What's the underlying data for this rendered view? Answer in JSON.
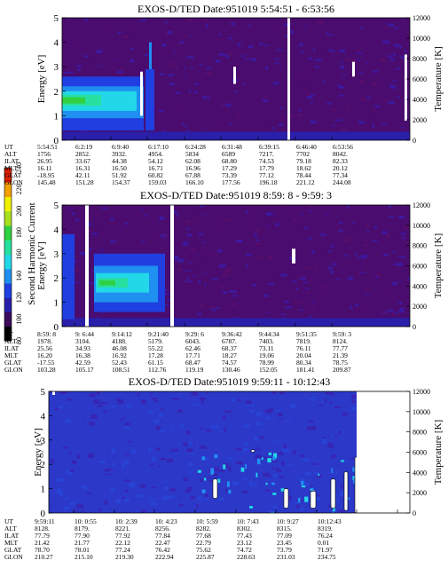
{
  "colorbar": {
    "label": "Second Harmonic Current",
    "ticks": [
      "80",
      "100",
      "120",
      "140",
      "160",
      "180",
      "200",
      "220",
      "240"
    ],
    "colors": [
      "#000000",
      "#3c0a5a",
      "#2a1fa8",
      "#1f3fe0",
      "#1f8ff0",
      "#22d8e8",
      "#27e0a0",
      "#30d040",
      "#a8e020",
      "#f0f000",
      "#f0a000",
      "#e02000"
    ]
  },
  "chart_data": [
    {
      "type": "heatmap",
      "title": "EXOS-D/TED   Date:951019  5:54:51 - 6:53:56",
      "ylabel": "Energy [eV]",
      "y2label": "Temperature [K]",
      "ylim": [
        0,
        5
      ],
      "y_ticks": [
        "0",
        "1",
        "2",
        "3",
        "4",
        "5"
      ],
      "y2lim": [
        0,
        12000
      ],
      "y2_ticks": [
        "0",
        "2000",
        "4000",
        "6000",
        "8000",
        "10000",
        "12000"
      ],
      "row_labels": [
        "UT",
        "ALT",
        "ILAT",
        "MLT",
        "GLAT",
        "GLON"
      ],
      "columns": [
        [
          "5:54:51",
          "1756",
          "26.95",
          "16.11",
          "-18.95",
          "145.48"
        ],
        [
          "6:2:19",
          "2852.",
          "33.67",
          "16.31",
          "42.11",
          "151.28"
        ],
        [
          "6:9:40",
          "3932.",
          "44.38",
          "16.50",
          "51.92",
          "154.37"
        ],
        [
          "6:17:10",
          "4954.",
          "54.12",
          "16.71",
          "60.82",
          "159.03"
        ],
        [
          "6:24:28",
          "5834",
          "62.08",
          "16.96",
          "67.88",
          "166.10"
        ],
        [
          "6:31:48",
          "6589",
          "68.80",
          "17.29",
          "73.39",
          "177.56"
        ],
        [
          "6:39:15",
          "7217.",
          "74.53",
          "17.79",
          "77.12",
          "196.18"
        ],
        [
          "6:46:40",
          "7702",
          "79.18",
          "18.62",
          "78.44",
          "221.12"
        ],
        [
          "6:53:56",
          "8042.",
          "82.33",
          "20.12",
          "77.34",
          "244.08"
        ]
      ]
    },
    {
      "type": "heatmap",
      "title": "EXOS-D/TED   Date:951019  8:59: 8 - 9:59: 3",
      "ylabel": "Energy [eV]",
      "y2label": "Temperature [K]",
      "ylim": [
        0,
        5
      ],
      "y_ticks": [
        "0",
        "1",
        "2",
        "3",
        "4",
        "5"
      ],
      "y2lim": [
        0,
        12000
      ],
      "y2_ticks": [
        "0",
        "2000",
        "4000",
        "6000",
        "8000",
        "10000",
        "12000"
      ],
      "row_labels": [
        "UT",
        "ALT",
        "ILAT",
        "MLT",
        "GLAT",
        "GLON"
      ],
      "columns": [
        [
          "8:59: 8",
          "1978.",
          "25.56",
          "16.20",
          "-17.55",
          "103.28"
        ],
        [
          "9: 6:44",
          "3104.",
          "34.93",
          "16.38",
          "42.59",
          "105.17"
        ],
        [
          "9:14:12",
          "4188.",
          "46.08",
          "16.92",
          "52.43",
          "108.51"
        ],
        [
          "9:21:40",
          "5179.",
          "55.22",
          "17.28",
          "61.15",
          "112.76"
        ],
        [
          "9:29: 6",
          "6043.",
          "62.46",
          "17.71",
          "68.47",
          "119.19"
        ],
        [
          "9:36:42",
          "6787.",
          "68.37",
          "18.27",
          "74.57",
          "130.46"
        ],
        [
          "9:44:34",
          "7403.",
          "73.11",
          "19.06",
          "78.99",
          "152.05"
        ],
        [
          "9:51:35",
          "7819.",
          "76.11",
          "20.04",
          "80.34",
          "181.41"
        ],
        [
          "9:59: 3",
          "8124.",
          "77.77",
          "21.39",
          "78.75",
          "209.87"
        ]
      ]
    },
    {
      "type": "heatmap",
      "title": "EXOS-D/TED   Date:951019  9:59:11 - 10:12:43",
      "ylabel": "Energy [eV]",
      "y2label": "Temperature [K]",
      "ylim": [
        0,
        5
      ],
      "y_ticks": [
        "0",
        "1",
        "2",
        "3",
        "4",
        "5"
      ],
      "y2lim": [
        0,
        12000
      ],
      "y2_ticks": [
        "0",
        "2000",
        "4000",
        "6000",
        "8000",
        "10000",
        "12000"
      ],
      "row_labels": [
        "UT",
        "ALT",
        "ILAT",
        "MLT",
        "GLAT",
        "GLON"
      ],
      "columns": [
        [
          "9:59:11",
          "8128.",
          "77.79",
          "21.42",
          "78.70",
          "210.27"
        ],
        [
          "10: 0:55",
          "8179.",
          "77.90",
          "21.77",
          "78.01",
          "215.10"
        ],
        [
          "10: 2:39",
          "8221.",
          "77.92",
          "22.12",
          "77.24",
          "219.30"
        ],
        [
          "10: 4:23",
          "8256.",
          "77.84",
          "22.47",
          "76.42",
          "222.94"
        ],
        [
          "10: 5:59",
          "8282.",
          "77.68",
          "22.79",
          "75.62",
          "225.87"
        ],
        [
          "10: 7:43",
          "8302.",
          "77.43",
          "23.12",
          "74.72",
          "228.63"
        ],
        [
          "10: 9:27",
          "8315.",
          "77.09",
          "23.45",
          "73.79",
          "231.03"
        ],
        [
          "10:12:43",
          "8319.",
          "76.24",
          "0.01",
          "71.97",
          "234.75"
        ]
      ]
    }
  ]
}
